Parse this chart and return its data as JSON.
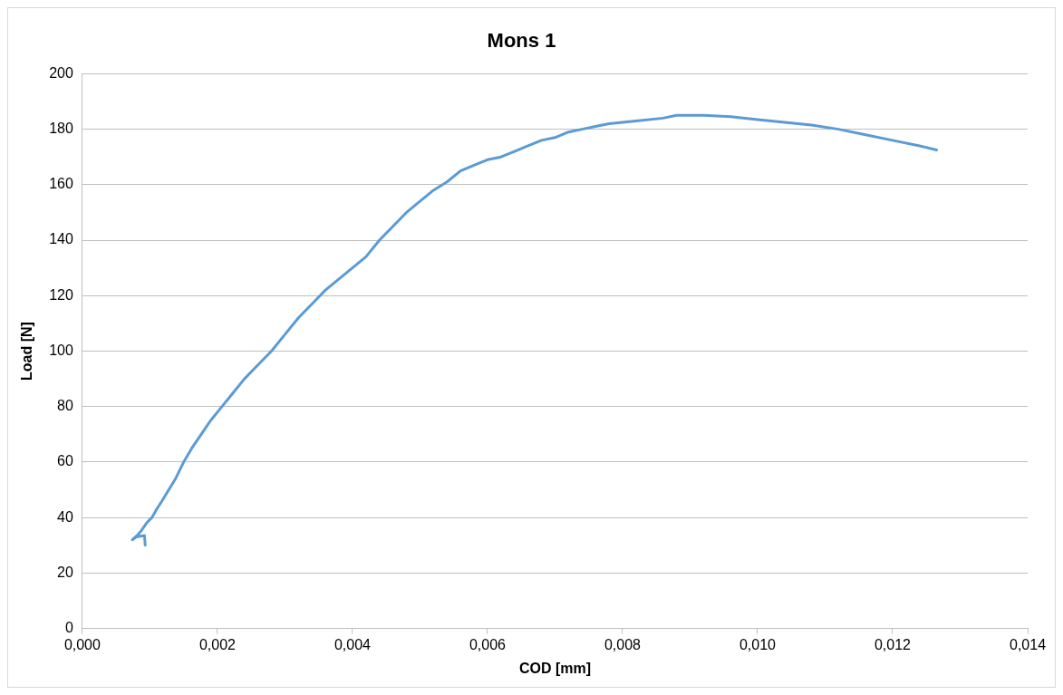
{
  "chart_data": {
    "type": "line",
    "title": "Mons 1",
    "xlabel": "COD [mm]",
    "ylabel": "Load [N]",
    "series": [
      {
        "color": "#5b9bd5",
        "x": [
          0.00093,
          0.00092,
          0.0008,
          0.00074,
          0.00083,
          0.00088,
          0.00095,
          0.00103,
          0.0011,
          0.00118,
          0.00128,
          0.00138,
          0.0015,
          0.00162,
          0.00176,
          0.0019,
          0.002,
          0.0022,
          0.0024,
          0.0026,
          0.0028,
          0.003,
          0.0032,
          0.0034,
          0.0036,
          0.0038,
          0.004,
          0.0042,
          0.0044,
          0.0046,
          0.0048,
          0.005,
          0.0052,
          0.0054,
          0.0056,
          0.0058,
          0.006,
          0.0062,
          0.0064,
          0.0066,
          0.0068,
          0.007,
          0.0072,
          0.0074,
          0.0076,
          0.0078,
          0.0082,
          0.0086,
          0.0088,
          0.0092,
          0.0096,
          0.01,
          0.0104,
          0.0108,
          0.0112,
          0.0116,
          0.012,
          0.0124,
          0.01265
        ],
        "values": [
          30,
          33.5,
          33,
          32,
          34,
          35.5,
          38,
          40,
          43,
          46,
          50,
          54,
          60,
          65,
          70,
          75,
          78,
          84,
          90,
          95,
          100,
          106,
          112,
          117,
          122,
          126,
          130,
          134,
          140,
          145,
          150,
          154,
          158,
          161,
          165,
          167,
          169,
          170,
          172,
          174,
          176,
          177,
          179,
          180,
          181,
          182,
          183,
          184,
          185,
          185,
          184.5,
          183.5,
          182.5,
          181.5,
          180,
          178,
          176,
          174,
          172.5
        ]
      }
    ],
    "xlim": [
      0,
      0.014
    ],
    "xticks": [
      {
        "value": 0,
        "label": "0,000"
      },
      {
        "value": 0.002,
        "label": "0,002"
      },
      {
        "value": 0.004,
        "label": "0,004"
      },
      {
        "value": 0.006,
        "label": "0,006"
      },
      {
        "value": 0.008,
        "label": "0,008"
      },
      {
        "value": 0.01,
        "label": "0,010"
      },
      {
        "value": 0.012,
        "label": "0,012"
      },
      {
        "value": 0.014,
        "label": "0,014"
      }
    ],
    "ylim": [
      0,
      200
    ],
    "yticks": [
      0,
      20,
      40,
      60,
      80,
      100,
      120,
      140,
      160,
      180,
      200
    ],
    "grid": "y",
    "legend": false,
    "marker": "none",
    "line_style": "solid"
  }
}
